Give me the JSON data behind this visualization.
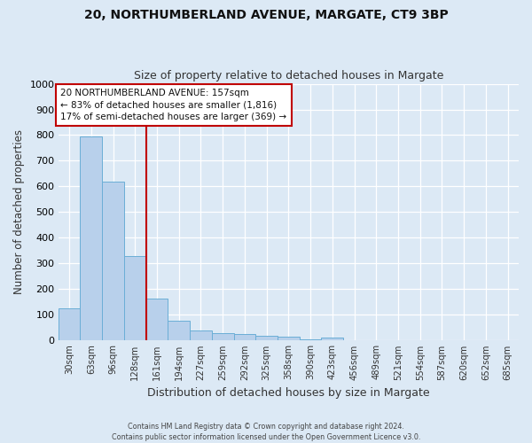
{
  "title1": "20, NORTHUMBERLAND AVENUE, MARGATE, CT9 3BP",
  "title2": "Size of property relative to detached houses in Margate",
  "xlabel": "Distribution of detached houses by size in Margate",
  "ylabel": "Number of detached properties",
  "categories": [
    "30sqm",
    "63sqm",
    "96sqm",
    "128sqm",
    "161sqm",
    "194sqm",
    "227sqm",
    "259sqm",
    "292sqm",
    "325sqm",
    "358sqm",
    "390sqm",
    "423sqm",
    "456sqm",
    "489sqm",
    "521sqm",
    "554sqm",
    "587sqm",
    "620sqm",
    "652sqm",
    "685sqm"
  ],
  "values": [
    125,
    795,
    620,
    330,
    162,
    78,
    40,
    28,
    26,
    18,
    13,
    5,
    10,
    0,
    0,
    0,
    0,
    0,
    0,
    0,
    0
  ],
  "bar_color": "#b8d0eb",
  "bar_edge_color": "#6baed6",
  "ref_line_color": "#c00000",
  "annotation_text": "20 NORTHUMBERLAND AVENUE: 157sqm\n← 83% of detached houses are smaller (1,816)\n17% of semi-detached houses are larger (369) →",
  "annotation_box_color": "#ffffff",
  "annotation_box_edge": "#c00000",
  "footnote": "Contains HM Land Registry data © Crown copyright and database right 2024.\nContains public sector information licensed under the Open Government Licence v3.0.",
  "ylim": [
    0,
    1000
  ],
  "yticks": [
    0,
    100,
    200,
    300,
    400,
    500,
    600,
    700,
    800,
    900,
    1000
  ],
  "background_color": "#dce9f5",
  "grid_color": "#ffffff"
}
